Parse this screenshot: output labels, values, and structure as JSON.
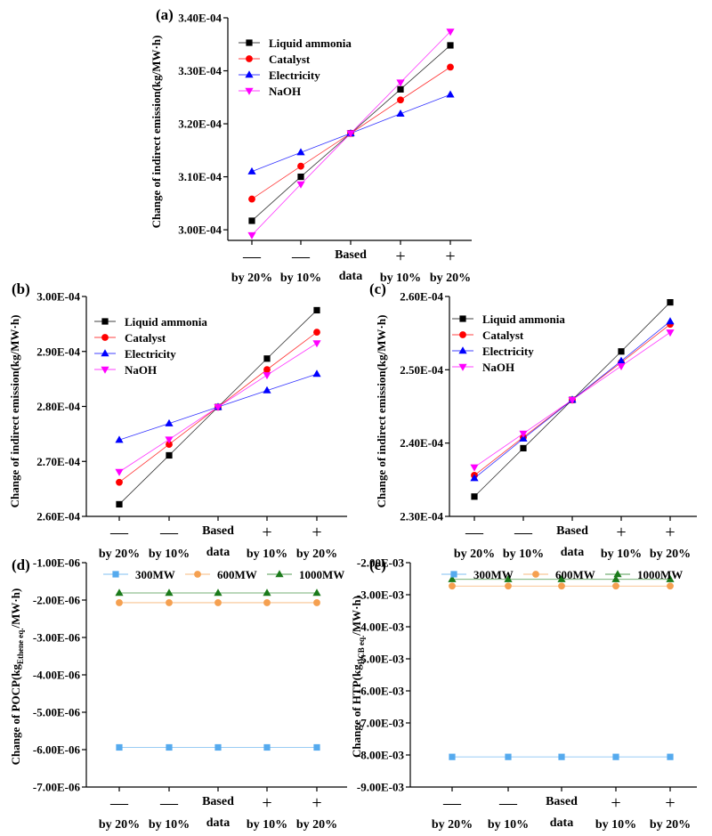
{
  "x_labels": [
    {
      "sign": "—",
      "text": "by 20%"
    },
    {
      "sign": "—",
      "text": "by 10%"
    },
    {
      "sign": "",
      "text": "Based",
      "text2": "data"
    },
    {
      "sign": "+",
      "text": "by 10%"
    },
    {
      "sign": "+",
      "text": "by 20%"
    }
  ],
  "chart_data": [
    {
      "panel": "(a)",
      "type": "line",
      "ylabel": "Change of indirect emission(kg/MW·h)",
      "ylim": [
        0.000298,
        0.00034
      ],
      "yticks": [
        "3.00E-04",
        "3.10E-04",
        "3.20E-04",
        "3.30E-04",
        "3.40E-04"
      ],
      "legend_position": "top-left",
      "series": [
        {
          "name": "Liquid ammonia",
          "color": "#000000",
          "marker": "square",
          "values": [
            0.0003017,
            0.00031,
            0.0003182,
            0.0003265,
            0.0003348
          ]
        },
        {
          "name": "Catalyst",
          "color": "#ff0000",
          "marker": "circle",
          "values": [
            0.0003058,
            0.000312,
            0.0003182,
            0.0003245,
            0.0003307
          ]
        },
        {
          "name": "Electricity",
          "color": "#0000ff",
          "marker": "triangle-up",
          "values": [
            0.000311,
            0.0003146,
            0.0003182,
            0.0003219,
            0.0003255
          ]
        },
        {
          "name": "NaOH",
          "color": "#ff00ff",
          "marker": "triangle-down",
          "values": [
            0.000299,
            0.0003086,
            0.0003182,
            0.0003278,
            0.0003374
          ]
        }
      ]
    },
    {
      "panel": "(b)",
      "type": "line",
      "ylabel": "Change of indirect emission(kg/MW·h)",
      "ylim": [
        0.00026,
        0.0003
      ],
      "yticks": [
        "2.60E-04",
        "2.70E-04",
        "2.80E-04",
        "2.90E-04",
        "3.00E-04"
      ],
      "legend_position": "top-left",
      "series": [
        {
          "name": "Liquid ammonia",
          "color": "#000000",
          "marker": "square",
          "values": [
            0.0002622,
            0.0002711,
            0.0002799,
            0.0002887,
            0.0002975
          ]
        },
        {
          "name": "Catalyst",
          "color": "#ff0000",
          "marker": "circle",
          "values": [
            0.0002662,
            0.0002731,
            0.0002799,
            0.0002867,
            0.0002935
          ]
        },
        {
          "name": "Electricity",
          "color": "#0000ff",
          "marker": "triangle-up",
          "values": [
            0.0002739,
            0.0002769,
            0.0002799,
            0.0002829,
            0.0002859
          ]
        },
        {
          "name": "NaOH",
          "color": "#ff00ff",
          "marker": "triangle-down",
          "values": [
            0.0002681,
            0.000274,
            0.0002799,
            0.0002857,
            0.0002915
          ]
        }
      ]
    },
    {
      "panel": "(c)",
      "type": "line",
      "ylabel": "Change of indirect emission(kg/MW·h)",
      "ylim": [
        0.00023,
        0.00026
      ],
      "yticks": [
        "2.30E-04",
        "2.40E-04",
        "2.50E-04",
        "2.60E-04"
      ],
      "legend_position": "top-left",
      "series": [
        {
          "name": "Liquid ammonia",
          "color": "#000000",
          "marker": "square",
          "values": [
            0.0002327,
            0.0002393,
            0.0002459,
            0.0002525,
            0.0002592
          ]
        },
        {
          "name": "Catalyst",
          "color": "#ff0000",
          "marker": "circle",
          "values": [
            0.0002356,
            0.0002408,
            0.0002459,
            0.000251,
            0.0002562
          ]
        },
        {
          "name": "Electricity",
          "color": "#0000ff",
          "marker": "triangle-up",
          "values": [
            0.0002352,
            0.0002406,
            0.0002459,
            0.0002512,
            0.0002566
          ]
        },
        {
          "name": "NaOH",
          "color": "#ff00ff",
          "marker": "triangle-down",
          "values": [
            0.0002367,
            0.0002413,
            0.0002459,
            0.0002505,
            0.0002551
          ]
        }
      ]
    },
    {
      "panel": "(d)",
      "type": "line",
      "ylabel_main": "Change of POCP(kg",
      "ylabel_sub": "Ethene eq.",
      "ylabel_tail": "/MW·h)",
      "ylim": [
        -7e-06,
        -1e-06
      ],
      "yticks": [
        "-7.00E-06",
        "-6.00E-06",
        "-5.00E-06",
        "-4.00E-06",
        "-3.00E-06",
        "-2.00E-06",
        "-1.00E-06"
      ],
      "legend_position": "top",
      "series": [
        {
          "name": "300MW",
          "color": "#55aaee",
          "marker": "square",
          "values": [
            -5.94e-06,
            -5.94e-06,
            -5.94e-06,
            -5.94e-06,
            -5.94e-06
          ]
        },
        {
          "name": "600MW",
          "color": "#f5a050",
          "marker": "circle",
          "values": [
            -2.07e-06,
            -2.07e-06,
            -2.07e-06,
            -2.07e-06,
            -2.07e-06
          ]
        },
        {
          "name": "1000MW",
          "color": "#1a7a1a",
          "marker": "triangle-up",
          "values": [
            -1.81e-06,
            -1.81e-06,
            -1.81e-06,
            -1.81e-06,
            -1.81e-06
          ]
        }
      ]
    },
    {
      "panel": "(e)",
      "type": "line",
      "ylabel_main": "Change of HTP(kg",
      "ylabel_sub": "DCB eq.",
      "ylabel_tail": "/MW·h)",
      "ylim": [
        -0.009,
        -0.002
      ],
      "yticks": [
        "-9.00E-03",
        "-8.00E-03",
        "-7.00E-03",
        "-6.00E-03",
        "-5.00E-03",
        "-4.00E-03",
        "-3.00E-03",
        "-2.00E-03"
      ],
      "legend_position": "top",
      "series": [
        {
          "name": "300MW",
          "color": "#55aaee",
          "marker": "square",
          "values": [
            -0.00806,
            -0.00806,
            -0.00806,
            -0.00806,
            -0.00806
          ]
        },
        {
          "name": "600MW",
          "color": "#f5a050",
          "marker": "circle",
          "values": [
            -0.00273,
            -0.00273,
            -0.00273,
            -0.00273,
            -0.00273
          ]
        },
        {
          "name": "1000MW",
          "color": "#1a7a1a",
          "marker": "triangle-up",
          "values": [
            -0.00252,
            -0.00252,
            -0.00252,
            -0.00252,
            -0.00252
          ]
        }
      ]
    }
  ]
}
